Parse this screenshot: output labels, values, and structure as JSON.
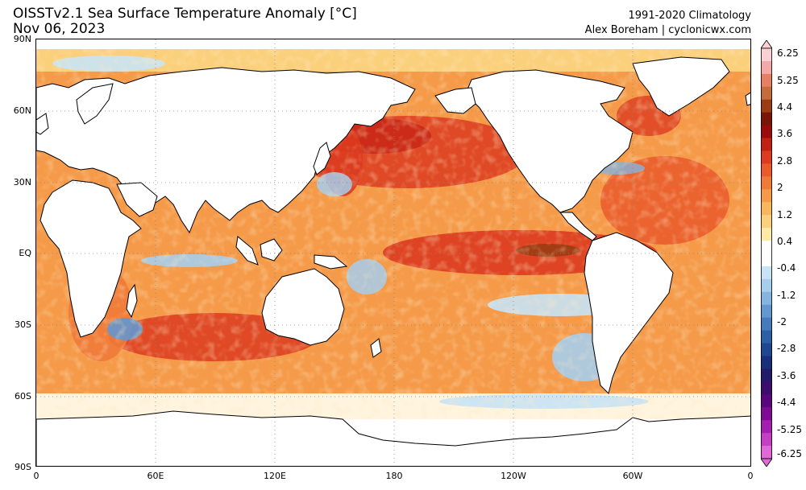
{
  "header": {
    "title": "OISSTv2.1 Sea Surface Temperature Anomaly [°C]",
    "date": "Nov 06, 2023",
    "climatology": "1991-2020 Climatology",
    "credit": "Alex Boreham | cyclonicwx.com"
  },
  "map": {
    "lat_labels": [
      "90N",
      "60N",
      "30N",
      "EQ",
      "30S",
      "60S",
      "90S"
    ],
    "lon_labels": [
      "0",
      "60E",
      "120E",
      "180",
      "120W",
      "60W",
      "0"
    ],
    "grid": "dotted",
    "ocean_style": "sea surface temperature anomaly shading",
    "land_color": "#ffffff",
    "coast_color": "#000000"
  },
  "colorbar": {
    "labels": [
      "6.25",
      "5.25",
      "4.4",
      "3.6",
      "2.8",
      "2",
      "1.2",
      "0.4",
      "-0.4",
      "-1.2",
      "-2",
      "-2.8",
      "-3.6",
      "-4.4",
      "-5.25",
      "-6.25"
    ],
    "extend": "both",
    "colors": [
      "#f9d0d4",
      "#f3a9a5",
      "#e58062",
      "#c46c3b",
      "#9b3c12",
      "#7a1608",
      "#9c0b0b",
      "#c22012",
      "#dc3b1f",
      "#e95b2b",
      "#f07a38",
      "#f59a49",
      "#f8b65f",
      "#fbd07c",
      "#ffe9a6",
      "#ffffff",
      "#ffffff",
      "#c8e3f5",
      "#a6cdec",
      "#84b4df",
      "#6497cf",
      "#457bbd",
      "#2c5fa6",
      "#1f4690",
      "#1a2f7b",
      "#241a6b",
      "#3c0c6e",
      "#5a077e",
      "#7f0b95",
      "#a51fae",
      "#c53fc4",
      "#df6ad7"
    ]
  }
}
